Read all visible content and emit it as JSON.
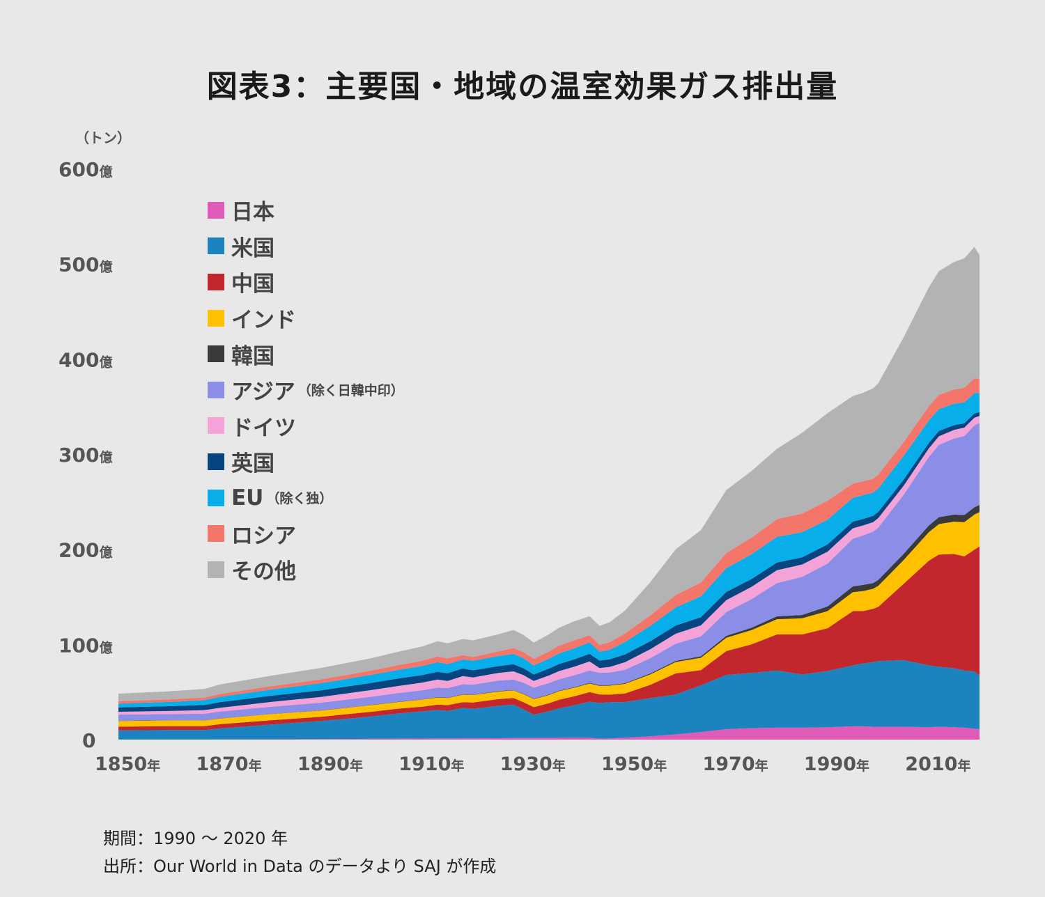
{
  "title": "図表3：主要国・地域の温室効果ガス排出量",
  "unit_label": "（トン）",
  "footer": {
    "period": "期間：1990 〜 2020 年",
    "source": "出所：Our World in Data のデータより SAJ が作成"
  },
  "legend": [
    {
      "label": "日本",
      "note": "",
      "color": "#e05bb8"
    },
    {
      "label": "米国",
      "note": "",
      "color": "#1b84bf"
    },
    {
      "label": "中国",
      "note": "",
      "color": "#c1272d"
    },
    {
      "label": "インド",
      "note": "",
      "color": "#ffc000"
    },
    {
      "label": "韓国",
      "note": "",
      "color": "#3a3a3a"
    },
    {
      "label": "アジア",
      "note": "（除く日韓中印）",
      "color": "#8a8ee6"
    },
    {
      "label": "ドイツ",
      "note": "",
      "color": "#f4a3d8"
    },
    {
      "label": "英国",
      "note": "",
      "color": "#064580"
    },
    {
      "label": "EU",
      "note": "（除く独）",
      "color": "#07aeea"
    },
    {
      "label": "ロシア",
      "note": "",
      "color": "#f47569"
    },
    {
      "label": "その他",
      "note": "",
      "color": "#b3b3b3"
    }
  ],
  "chart_data": {
    "type": "area",
    "title": "図表3：主要国・地域の温室効果ガス排出量",
    "ylabel": "（トン）",
    "ylim": [
      0,
      60000000000
    ],
    "xlim": [
      1850,
      2020
    ],
    "y_ticks": [
      {
        "value": 0,
        "label": "0"
      },
      {
        "value": 10000000000,
        "label": "100億"
      },
      {
        "value": 20000000000,
        "label": "200億"
      },
      {
        "value": 30000000000,
        "label": "300億"
      },
      {
        "value": 40000000000,
        "label": "400億"
      },
      {
        "value": 50000000000,
        "label": "500億"
      },
      {
        "value": 60000000000,
        "label": "600億"
      }
    ],
    "x_ticks": [
      {
        "value": 1850,
        "label": "1850年"
      },
      {
        "value": 1870,
        "label": "1870年"
      },
      {
        "value": 1890,
        "label": "1890年"
      },
      {
        "value": 1910,
        "label": "1910年"
      },
      {
        "value": 1930,
        "label": "1930年"
      },
      {
        "value": 1950,
        "label": "1950年"
      },
      {
        "value": 1970,
        "label": "1970年"
      },
      {
        "value": 1990,
        "label": "1990年"
      },
      {
        "value": 2010,
        "label": "2010年"
      }
    ],
    "x": [
      1850,
      1860,
      1867,
      1870,
      1880,
      1890,
      1900,
      1905,
      1910,
      1913,
      1915,
      1918,
      1920,
      1925,
      1928,
      1930,
      1932,
      1935,
      1937,
      1940,
      1943,
      1945,
      1947,
      1950,
      1955,
      1960,
      1965,
      1970,
      1975,
      1980,
      1985,
      1990,
      1995,
      1997,
      1999,
      2000,
      2005,
      2010,
      2012,
      2015,
      2017,
      2019,
      2020
    ],
    "stacked": true,
    "series": [
      {
        "name": "日本",
        "values": [
          0.01,
          0.01,
          0.01,
          0.02,
          0.03,
          0.05,
          0.08,
          0.09,
          0.11,
          0.12,
          0.12,
          0.13,
          0.14,
          0.15,
          0.17,
          0.17,
          0.16,
          0.18,
          0.19,
          0.2,
          0.19,
          0.1,
          0.12,
          0.2,
          0.35,
          0.55,
          0.8,
          1.1,
          1.2,
          1.25,
          1.25,
          1.3,
          1.4,
          1.4,
          1.35,
          1.35,
          1.35,
          1.3,
          1.35,
          1.3,
          1.25,
          1.15,
          1.1
        ]
      },
      {
        "name": "米国",
        "values": [
          0.95,
          1.0,
          1.0,
          1.15,
          1.55,
          1.9,
          2.35,
          2.65,
          2.85,
          3.0,
          2.9,
          3.2,
          3.1,
          3.4,
          3.5,
          3.0,
          2.45,
          2.8,
          3.1,
          3.4,
          3.8,
          3.75,
          3.8,
          3.75,
          4.0,
          4.2,
          4.9,
          5.7,
          5.8,
          6.0,
          5.6,
          5.9,
          6.4,
          6.6,
          6.8,
          6.9,
          7.0,
          6.5,
          6.3,
          6.2,
          6.0,
          6.0,
          5.6
        ]
      },
      {
        "name": "中国",
        "values": [
          0.4,
          0.4,
          0.4,
          0.45,
          0.45,
          0.45,
          0.5,
          0.5,
          0.5,
          0.55,
          0.6,
          0.6,
          0.65,
          0.7,
          0.7,
          0.75,
          0.8,
          0.85,
          0.9,
          0.95,
          1.0,
          0.9,
          0.8,
          0.9,
          1.4,
          2.2,
          1.6,
          2.5,
          3.0,
          3.8,
          4.2,
          4.5,
          5.7,
          5.5,
          5.6,
          5.7,
          8.0,
          11.0,
          11.8,
          12.0,
          12.0,
          12.8,
          13.6
        ]
      },
      {
        "name": "インド",
        "values": [
          0.6,
          0.6,
          0.6,
          0.6,
          0.65,
          0.65,
          0.7,
          0.7,
          0.75,
          0.75,
          0.75,
          0.8,
          0.8,
          0.8,
          0.8,
          0.85,
          0.85,
          0.85,
          0.9,
          0.9,
          0.9,
          0.9,
          0.95,
          1.0,
          1.1,
          1.2,
          1.3,
          1.4,
          1.5,
          1.6,
          1.7,
          1.8,
          2.0,
          2.1,
          2.1,
          2.2,
          2.5,
          3.0,
          3.2,
          3.4,
          3.6,
          3.7,
          3.6
        ]
      },
      {
        "name": "韓国",
        "values": [
          0.02,
          0.02,
          0.02,
          0.02,
          0.02,
          0.03,
          0.03,
          0.03,
          0.03,
          0.04,
          0.04,
          0.04,
          0.04,
          0.05,
          0.05,
          0.05,
          0.05,
          0.06,
          0.06,
          0.06,
          0.07,
          0.07,
          0.07,
          0.08,
          0.1,
          0.12,
          0.15,
          0.2,
          0.25,
          0.3,
          0.35,
          0.5,
          0.6,
          0.65,
          0.6,
          0.62,
          0.65,
          0.7,
          0.72,
          0.74,
          0.75,
          0.76,
          0.76
        ]
      },
      {
        "name": "アジア（除く日韓中印）",
        "values": [
          0.65,
          0.65,
          0.7,
          0.7,
          0.75,
          0.8,
          0.85,
          0.9,
          0.95,
          1.0,
          1.0,
          1.05,
          1.05,
          1.1,
          1.1,
          1.15,
          1.15,
          1.2,
          1.2,
          1.25,
          1.3,
          1.3,
          1.3,
          1.4,
          1.6,
          1.8,
          2.1,
          2.5,
          3.0,
          3.5,
          4.0,
          4.5,
          5.0,
          5.2,
          5.4,
          5.5,
          6.2,
          7.2,
          7.6,
          8.0,
          8.3,
          8.6,
          8.6
        ]
      },
      {
        "name": "ドイツ",
        "values": [
          0.3,
          0.33,
          0.36,
          0.4,
          0.5,
          0.6,
          0.7,
          0.75,
          0.8,
          0.85,
          0.75,
          0.85,
          0.75,
          0.8,
          0.85,
          0.8,
          0.7,
          0.8,
          0.85,
          0.9,
          0.95,
          0.5,
          0.6,
          0.8,
          0.95,
          1.05,
          1.15,
          1.25,
          1.3,
          1.35,
          1.3,
          1.25,
          1.1,
          1.05,
          1.0,
          1.0,
          0.95,
          0.9,
          0.9,
          0.9,
          0.88,
          0.82,
          0.75
        ]
      },
      {
        "name": "英国",
        "values": [
          0.45,
          0.5,
          0.55,
          0.6,
          0.65,
          0.7,
          0.75,
          0.78,
          0.8,
          0.82,
          0.82,
          0.8,
          0.75,
          0.72,
          0.75,
          0.72,
          0.68,
          0.72,
          0.75,
          0.78,
          0.8,
          0.78,
          0.8,
          0.82,
          0.84,
          0.86,
          0.86,
          0.86,
          0.82,
          0.8,
          0.75,
          0.75,
          0.7,
          0.68,
          0.66,
          0.66,
          0.64,
          0.58,
          0.56,
          0.5,
          0.46,
          0.44,
          0.4
        ]
      },
      {
        "name": "EU（除く独）",
        "values": [
          0.4,
          0.45,
          0.5,
          0.55,
          0.65,
          0.75,
          0.85,
          0.9,
          0.95,
          1.0,
          0.95,
          0.95,
          1.0,
          1.05,
          1.1,
          1.05,
          0.95,
          1.05,
          1.1,
          1.15,
          1.2,
          0.95,
          1.0,
          1.3,
          1.6,
          1.9,
          2.2,
          2.5,
          2.6,
          2.7,
          2.65,
          2.6,
          2.5,
          2.5,
          2.45,
          2.45,
          2.5,
          2.35,
          2.3,
          2.25,
          2.2,
          2.15,
          2.0
        ]
      },
      {
        "name": "ロシア",
        "values": [
          0.25,
          0.27,
          0.28,
          0.3,
          0.35,
          0.4,
          0.45,
          0.5,
          0.55,
          0.6,
          0.6,
          0.45,
          0.4,
          0.5,
          0.6,
          0.65,
          0.7,
          0.75,
          0.8,
          0.85,
          0.75,
          0.7,
          0.8,
          0.9,
          1.1,
          1.3,
          1.45,
          1.6,
          1.75,
          1.85,
          1.95,
          2.0,
          1.5,
          1.45,
          1.45,
          1.45,
          1.45,
          1.5,
          1.5,
          1.5,
          1.52,
          1.55,
          1.5
        ]
      },
      {
        "name": "その他",
        "values": [
          0.8,
          0.85,
          0.9,
          1.0,
          1.1,
          1.2,
          1.3,
          1.4,
          1.5,
          1.6,
          1.6,
          1.7,
          1.75,
          1.8,
          1.9,
          1.8,
          1.7,
          1.8,
          1.9,
          2.0,
          2.0,
          2.0,
          2.1,
          2.4,
          3.5,
          4.8,
          5.5,
          6.6,
          7.0,
          7.4,
          8.5,
          9.2,
          9.2,
          9.3,
          9.5,
          9.6,
          11.0,
          12.5,
          13.0,
          13.4,
          13.6,
          13.8,
          13.0
        ]
      }
    ],
    "value_scale": 1000000000,
    "legend": "top-left",
    "grid": false
  }
}
